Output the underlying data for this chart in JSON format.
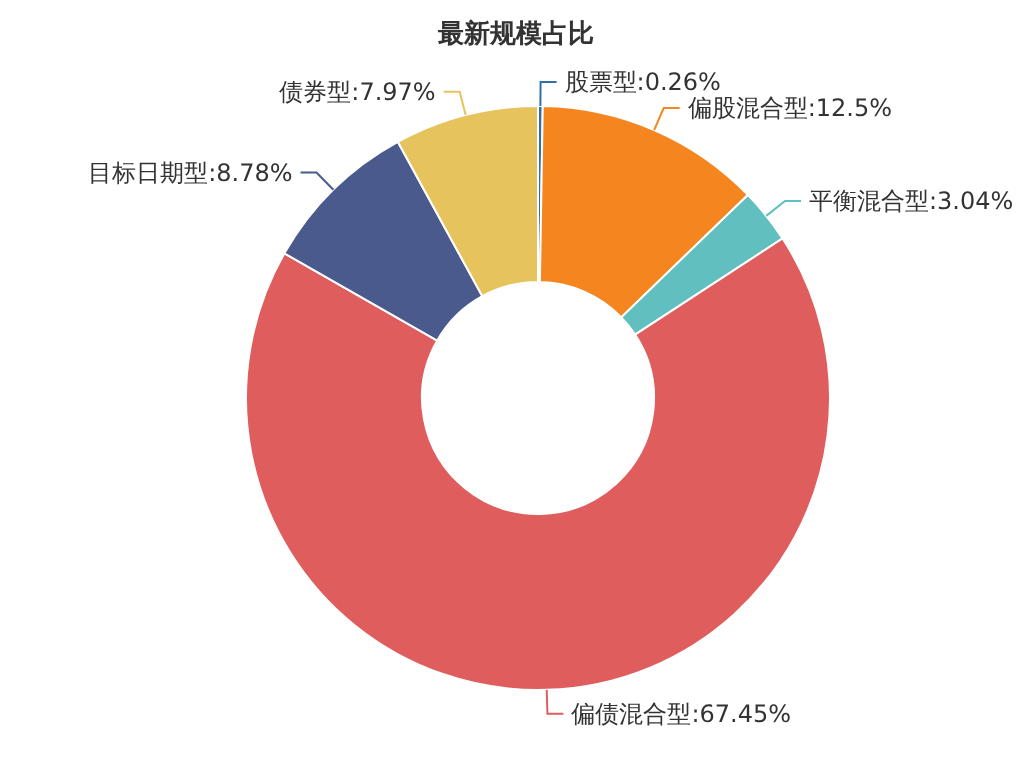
{
  "chart_data": {
    "type": "donut",
    "title": "最新规模占比",
    "categories": [
      "股票型",
      "偏股混合型",
      "平衡混合型",
      "偏债混合型",
      "目标日期型",
      "债券型"
    ],
    "values": [
      0.26,
      12.5,
      3.04,
      67.45,
      8.78,
      7.97
    ],
    "colors": [
      "#2f6fa7",
      "#f5861f",
      "#61bfbf",
      "#e05d5d",
      "#4a5a8c",
      "#e6c35c"
    ],
    "value_labels": [
      ":0.26%",
      ":12.5%",
      ":3.04%",
      ":67.45%",
      ":8.78%",
      ":7.97%"
    ],
    "legend": false
  }
}
